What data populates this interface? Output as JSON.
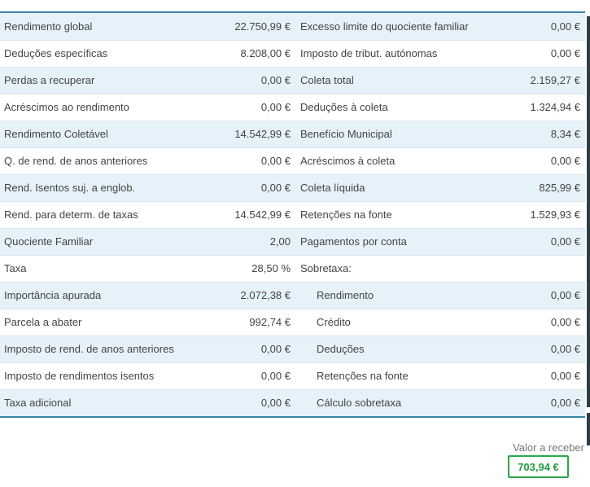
{
  "rows": [
    {
      "l1": "Rendimento global",
      "v1": "22.750,99 €",
      "l2": "Excesso limite do quociente familiar",
      "v2": "0,00 €",
      "indent": false
    },
    {
      "l1": "Deduções específicas",
      "v1": "8.208,00 €",
      "l2": "Imposto de tribut. autónomas",
      "v2": "0,00 €",
      "indent": false
    },
    {
      "l1": "Perdas a recuperar",
      "v1": "0,00 €",
      "l2": "Coleta total",
      "v2": "2.159,27 €",
      "indent": false
    },
    {
      "l1": "Acréscimos ao rendimento",
      "v1": "0,00 €",
      "l2": "Deduções à coleta",
      "v2": "1.324,94 €",
      "indent": false
    },
    {
      "l1": "Rendimento Coletável",
      "v1": "14.542,99 €",
      "l2": "Benefício Municipal",
      "v2": "8,34 €",
      "indent": false
    },
    {
      "l1": "Q. de rend. de anos anteriores",
      "v1": "0,00 €",
      "l2": "Acréscimos à coleta",
      "v2": "0,00 €",
      "indent": false
    },
    {
      "l1": "Rend. Isentos suj. a englob.",
      "v1": "0,00 €",
      "l2": "Coleta líquida",
      "v2": "825,99 €",
      "indent": false
    },
    {
      "l1": "Rend. para determ. de taxas",
      "v1": "14.542,99 €",
      "l2": "Retenções na fonte",
      "v2": "1.529,93 €",
      "indent": false
    },
    {
      "l1": "Quociente Familiar",
      "v1": "2,00",
      "l2": "Pagamentos por conta",
      "v2": "0,00 €",
      "indent": false
    },
    {
      "l1": "Taxa",
      "v1": "28,50 %",
      "l2": "Sobretaxa:",
      "v2": "",
      "indent": false
    },
    {
      "l1": "Importância apurada",
      "v1": "2.072,38 €",
      "l2": "Rendimento",
      "v2": "0,00 €",
      "indent": true
    },
    {
      "l1": "Parcela a abater",
      "v1": "992,74 €",
      "l2": "Crédito",
      "v2": "0,00 €",
      "indent": true
    },
    {
      "l1": "Imposto de rend. de anos anteriores",
      "v1": "0,00 €",
      "l2": "Deduções",
      "v2": "0,00 €",
      "indent": true
    },
    {
      "l1": "Imposto de rendimentos isentos",
      "v1": "0,00 €",
      "l2": "Retenções na fonte",
      "v2": "0,00 €",
      "indent": true
    },
    {
      "l1": "Taxa adicional",
      "v1": "0,00 €",
      "l2": "Cálculo sobretaxa",
      "v2": "0,00 €",
      "indent": true
    }
  ],
  "total": {
    "label": "Valor a receber",
    "value": "703,94 €"
  },
  "colors": {
    "accent": "#3b86a8",
    "row_alt": "#e6f2fa",
    "total_green": "#2aa84a"
  }
}
